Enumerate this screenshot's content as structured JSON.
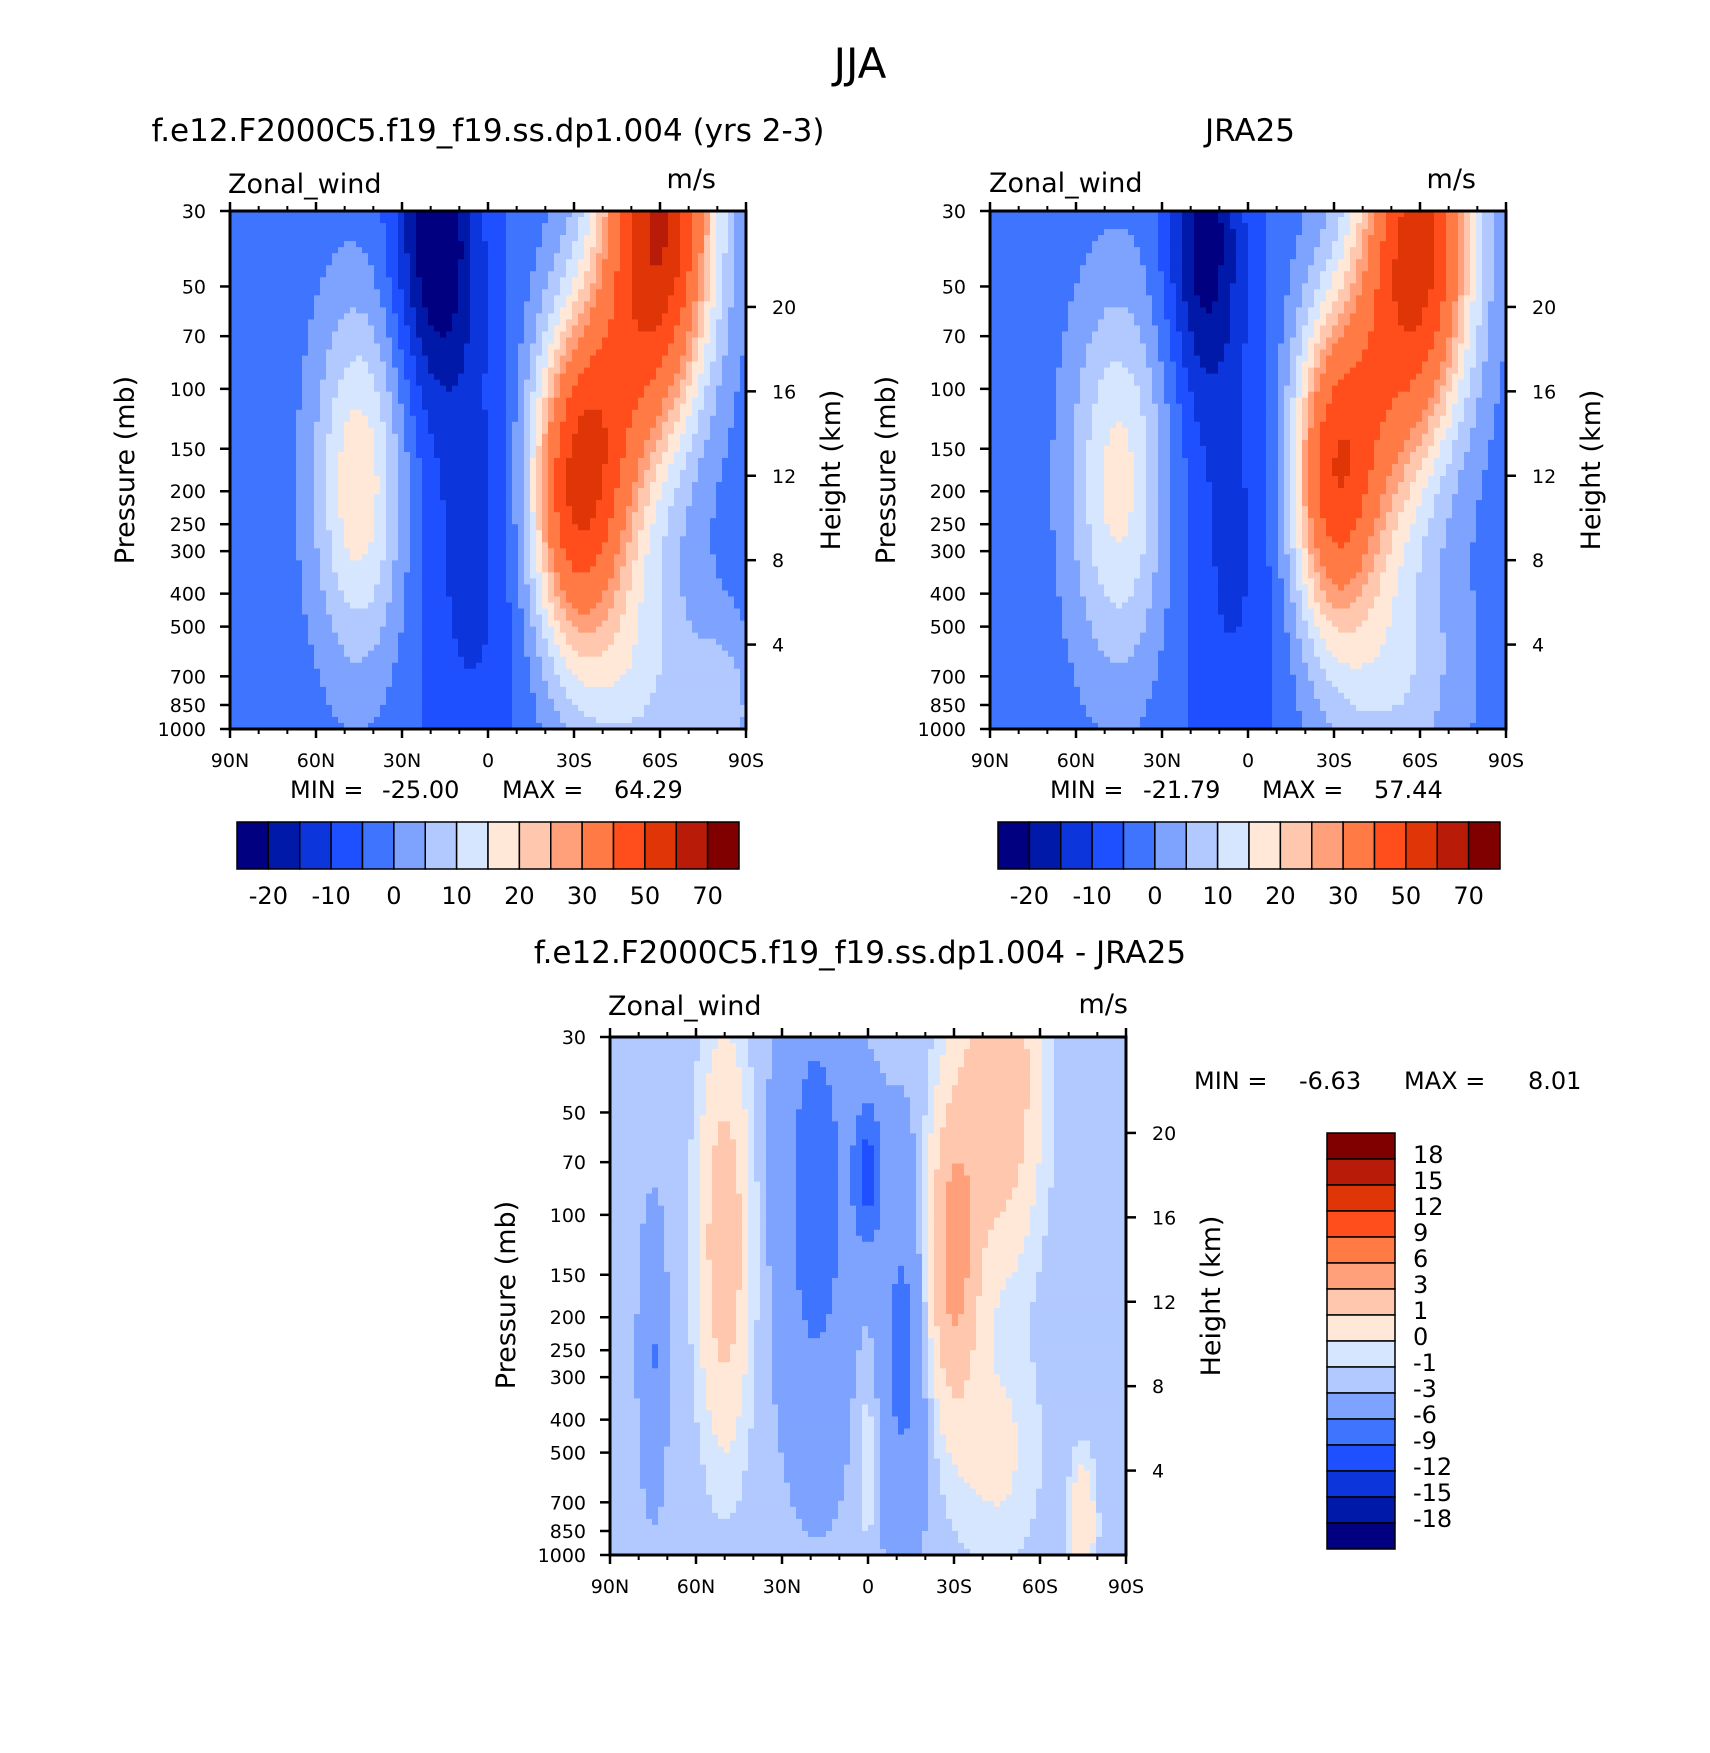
{
  "figure": {
    "title": "JJA"
  },
  "chart_data": [
    {
      "type": "heatmap",
      "id": "model",
      "title": "f.e12.F2000C5.f19_f19.ss.dp1.004 (yrs 2-3)",
      "variable": "Zonal_wind",
      "units": "m/s",
      "ylabel": "Pressure (mb)",
      "y2label": "Height (km)",
      "x_ticks": [
        "90N",
        "60N",
        "30N",
        "0",
        "30S",
        "60S",
        "90S"
      ],
      "y_ticks": [
        "30",
        "50",
        "70",
        "100",
        "150",
        "200",
        "250",
        "300",
        "400",
        "500",
        "700",
        "850",
        "1000"
      ],
      "y2_ticks": [
        "20",
        "16",
        "12",
        "8",
        "4"
      ],
      "ylim": [
        1000,
        30
      ],
      "xlim": [
        90,
        -90
      ],
      "min_label": "MIN =",
      "min_value": "-25.00",
      "max_label": "MAX =",
      "max_value": "64.29",
      "min": -25.0,
      "max": 64.29,
      "colorbar_labels": [
        "-20",
        "-10",
        "0",
        "10",
        "20",
        "30",
        "50",
        "70"
      ],
      "features": [
        {
          "lat": 45,
          "p": 200,
          "value": 20
        },
        {
          "lat": 18,
          "p": 40,
          "value": -25
        },
        {
          "lat": 0,
          "p": 200,
          "value": -8
        },
        {
          "lat": -30,
          "p": 200,
          "value": 45
        },
        {
          "lat": -60,
          "p": 30,
          "value": 64.29
        },
        {
          "lat": -55,
          "p": 700,
          "value": 12
        }
      ]
    },
    {
      "type": "heatmap",
      "id": "obs",
      "title": "JRA25",
      "variable": "Zonal_wind",
      "units": "m/s",
      "ylabel": "Pressure (mb)",
      "y2label": "Height (km)",
      "x_ticks": [
        "90N",
        "60N",
        "30N",
        "0",
        "30S",
        "60S",
        "90S"
      ],
      "y_ticks": [
        "30",
        "50",
        "70",
        "100",
        "150",
        "200",
        "250",
        "300",
        "400",
        "500",
        "700",
        "850",
        "1000"
      ],
      "y2_ticks": [
        "20",
        "16",
        "12",
        "8",
        "4"
      ],
      "ylim": [
        1000,
        30
      ],
      "xlim": [
        90,
        -90
      ],
      "min_label": "MIN =",
      "min_value": "-21.79",
      "max_label": "MAX =",
      "max_value": "57.44",
      "min": -21.79,
      "max": 57.44,
      "colorbar_labels": [
        "-20",
        "-10",
        "0",
        "10",
        "20",
        "30",
        "50",
        "70"
      ],
      "features": [
        {
          "lat": 45,
          "p": 200,
          "value": 18
        },
        {
          "lat": 15,
          "p": 35,
          "value": -21.79
        },
        {
          "lat": -29,
          "p": 200,
          "value": 40
        },
        {
          "lat": -60,
          "p": 30,
          "value": 57.44
        }
      ]
    },
    {
      "type": "heatmap",
      "id": "diff",
      "title": "f.e12.F2000C5.f19_f19.ss.dp1.004 - JRA25",
      "variable": "Zonal_wind",
      "units": "m/s",
      "ylabel": "Pressure (mb)",
      "y2label": "Height (km)",
      "x_ticks": [
        "90N",
        "60N",
        "30N",
        "0",
        "30S",
        "60S",
        "90S"
      ],
      "y_ticks": [
        "30",
        "50",
        "70",
        "100",
        "150",
        "200",
        "250",
        "300",
        "400",
        "500",
        "700",
        "850",
        "1000"
      ],
      "y2_ticks": [
        "20",
        "16",
        "12",
        "8",
        "4"
      ],
      "ylim": [
        1000,
        30
      ],
      "xlim": [
        90,
        -90
      ],
      "min_label": "MIN =",
      "min_value": "-6.63",
      "max_label": "MAX =",
      "max_value": "8.01",
      "min": -6.63,
      "max": 8.01,
      "colorbar_labels": [
        "18",
        "15",
        "12",
        "9",
        "6",
        "3",
        "1",
        "0",
        "-1",
        "-3",
        "-6",
        "-9",
        "-12",
        "-15",
        "-18"
      ],
      "features": [
        {
          "lat": 50,
          "p": 120,
          "value": 5
        },
        {
          "lat": -30,
          "p": 130,
          "value": 8.01
        },
        {
          "lat": 0,
          "p": 80,
          "value": -6.63
        },
        {
          "lat": -45,
          "p": 40,
          "value": 6
        }
      ]
    }
  ],
  "palette": {
    "main": [
      "#000080",
      "#0019a8",
      "#0d35dc",
      "#1e50ff",
      "#3f74ff",
      "#7ea3ff",
      "#b1c9ff",
      "#d6e6ff",
      "#ffe8d7",
      "#ffc8ae",
      "#ffa07a",
      "#ff7a45",
      "#ff4e1c",
      "#e03607",
      "#b81c08",
      "#800000"
    ],
    "diff": [
      "#000080",
      "#0019a8",
      "#0d35dc",
      "#1e50ff",
      "#3f74ff",
      "#7ea3ff",
      "#b1c9ff",
      "#d6e6ff",
      "#ffe8d7",
      "#ffc8ae",
      "#ffa07a",
      "#ff7a45",
      "#ff4e1c",
      "#e03607",
      "#b81c08",
      "#800000"
    ]
  }
}
